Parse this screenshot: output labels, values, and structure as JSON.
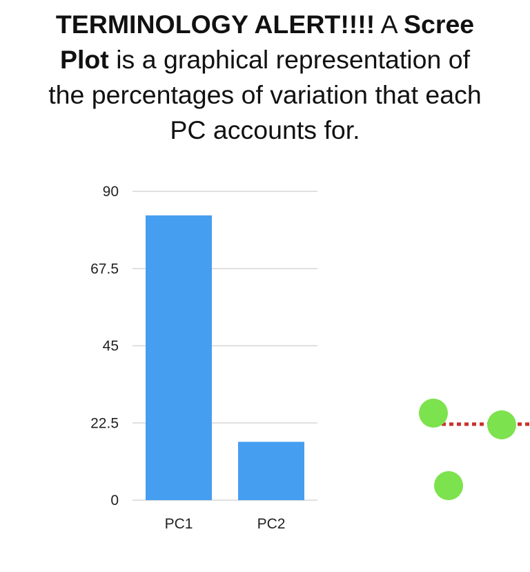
{
  "headline": {
    "lead_bold": "TERMINOLOGY ALERT!!!!",
    "lead_rest": " A ",
    "term_bold_1": "Scree",
    "term_bold_2": "Plot",
    "rest_line_2": " is a graphical representation of",
    "line_3": "the percentages of variation that each",
    "line_4": "PC accounts for."
  },
  "chart_data": {
    "type": "bar",
    "title": "",
    "xlabel": "",
    "ylabel": "",
    "categories": [
      "PC1",
      "PC2"
    ],
    "values": [
      83,
      17
    ],
    "ylim": [
      0,
      90
    ],
    "yticks": [
      0,
      22.5,
      45,
      67.5,
      90
    ],
    "ytick_labels": [
      "0",
      "22.5",
      "45",
      "67.5",
      "90"
    ],
    "grid": true,
    "bar_color": "#469ef0",
    "grid_color": "#d6d6d6"
  },
  "side_figure": {
    "point_color": "#7ce24d",
    "line_color": "#c9302c"
  }
}
